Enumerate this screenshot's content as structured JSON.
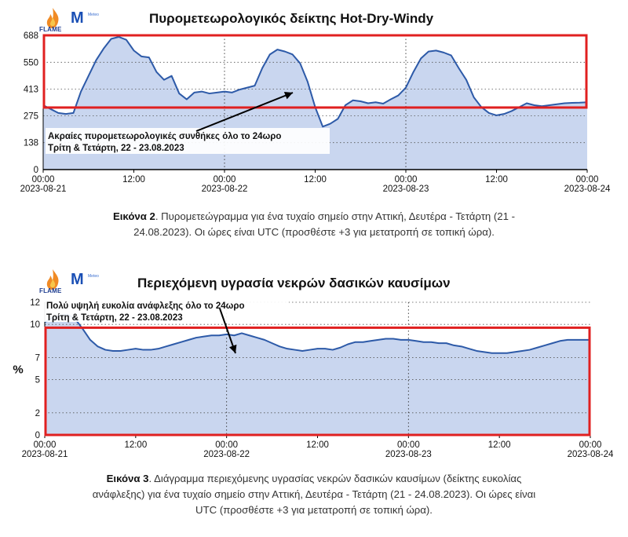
{
  "logos": {
    "flame_text": "FLAME",
    "meteo_mark": "M",
    "meteo_text": "Meteo"
  },
  "charts": [
    {
      "title": "Πυρομετεωρολογικός δείκτης Hot-Dry-Windy",
      "colors": {
        "fill": "#c9d6ef",
        "line": "#2d5aa8",
        "box": "#e02020"
      },
      "annotation": {
        "line1": "Ακραίες πυρομετεωρολογικές συνθήκες όλο το 24ωρο",
        "line2": "Τρίτη & Τετάρτη, 22 - 23.08.2023"
      },
      "caption": {
        "label": "Εικόνα 2",
        "text_line1": ". Πυρομετεώγραμμα για ένα τυχαίο σημείο στην Αττική, Δευτέρα - Τετάρτη (21 -",
        "text_line2": "24.08.2023). Οι ώρες είναι UTC (προσθέστε +3 για μετατροπή σε τοπική ώρα)."
      }
    },
    {
      "title": "Περιεχόμενη υγρασία νεκρών δασικών καυσίμων",
      "colors": {
        "fill": "#c9d6ef",
        "line": "#2d5aa8",
        "box": "#e02020"
      },
      "annotation": {
        "line1": "Πολύ υψηλή ευκολία ανάφλεξης όλο το 24ωρο",
        "line2": "Τρίτη & Τετάρτη, 22 - 23.08.2023"
      },
      "caption": {
        "label": "Εικόνα 3",
        "text_line1": ". Διάγραμμα περιεχόμενης υγρασίας νεκρών δασικών καυσίμων (δείκτης ευκολίας",
        "text_line2": "ανάφλεξης) για ένα τυχαίο σημείο στην Αττική, Δευτέρα - Τετάρτη (21 - 24.08.2023). Οι ώρες είναι",
        "text_line3": "UTC (προσθέστε +3 για μετατροπή σε τοπική ώρα)."
      }
    }
  ],
  "chart_data": [
    {
      "type": "area",
      "title": "Πυρομετεωρολογικός δείκτης Hot-Dry-Windy",
      "ylabel": "",
      "ylim": [
        0,
        688
      ],
      "yticks": [
        0,
        138,
        275,
        413,
        550,
        688
      ],
      "xlim": [
        0,
        72
      ],
      "xticks": [
        {
          "h": 0,
          "time": "00:00",
          "date": "2023-08-21"
        },
        {
          "h": 12,
          "time": "12:00",
          "date": ""
        },
        {
          "h": 24,
          "time": "00:00",
          "date": "2023-08-22"
        },
        {
          "h": 36,
          "time": "12:00",
          "date": ""
        },
        {
          "h": 48,
          "time": "00:00",
          "date": "2023-08-23"
        },
        {
          "h": 60,
          "time": "12:00",
          "date": ""
        },
        {
          "h": 72,
          "time": "00:00",
          "date": "2023-08-24"
        }
      ],
      "vlines": [
        24,
        48
      ],
      "threshold_box": [
        318,
        688
      ],
      "series": [
        {
          "x": [
            0,
            1,
            2,
            3,
            4,
            5,
            6,
            7,
            8,
            9,
            10,
            11,
            12,
            13,
            14,
            15,
            16,
            17,
            18,
            19,
            20,
            21,
            22,
            23,
            24,
            25,
            26,
            27,
            28,
            29,
            30,
            31,
            32,
            33,
            34,
            35,
            36,
            37,
            38,
            39,
            40,
            41,
            42,
            43,
            44,
            45,
            46,
            47,
            48,
            49,
            50,
            51,
            52,
            53,
            54,
            55,
            56,
            57,
            58,
            59,
            60,
            61,
            62,
            63,
            64,
            65,
            66,
            67,
            68,
            69,
            70,
            71,
            72
          ],
          "y": [
            330,
            310,
            290,
            285,
            290,
            400,
            480,
            560,
            620,
            670,
            680,
            665,
            610,
            580,
            575,
            500,
            460,
            480,
            390,
            360,
            395,
            400,
            390,
            395,
            400,
            395,
            410,
            420,
            430,
            520,
            590,
            615,
            605,
            590,
            545,
            450,
            320,
            220,
            235,
            260,
            330,
            355,
            350,
            340,
            345,
            338,
            360,
            380,
            420,
            500,
            570,
            605,
            610,
            600,
            585,
            520,
            460,
            370,
            320,
            290,
            278,
            285,
            300,
            320,
            340,
            330,
            325,
            330,
            335,
            340,
            342,
            343,
            345
          ]
        }
      ]
    },
    {
      "type": "area",
      "title": "Περιεχόμενη υγρασία νεκρών δασικών καυσίμων",
      "ylabel": "%",
      "ylim": [
        0,
        12
      ],
      "yticks": [
        0,
        2,
        5,
        7,
        10,
        12
      ],
      "xlim": [
        0,
        72
      ],
      "xticks": [
        {
          "h": 0,
          "time": "00:00",
          "date": "2023-08-21"
        },
        {
          "h": 12,
          "time": "12:00",
          "date": ""
        },
        {
          "h": 24,
          "time": "00:00",
          "date": "2023-08-22"
        },
        {
          "h": 36,
          "time": "12:00",
          "date": ""
        },
        {
          "h": 48,
          "time": "00:00",
          "date": "2023-08-23"
        },
        {
          "h": 60,
          "time": "12:00",
          "date": ""
        },
        {
          "h": 72,
          "time": "00:00",
          "date": "2023-08-24"
        }
      ],
      "vlines": [
        24,
        48
      ],
      "threshold_box": [
        0,
        9.7
      ],
      "series": [
        {
          "x": [
            0,
            1,
            2,
            3,
            4,
            5,
            6,
            7,
            8,
            9,
            10,
            11,
            12,
            13,
            14,
            15,
            16,
            17,
            18,
            19,
            20,
            21,
            22,
            23,
            24,
            25,
            26,
            27,
            28,
            29,
            30,
            31,
            32,
            33,
            34,
            35,
            36,
            37,
            38,
            39,
            40,
            41,
            42,
            43,
            44,
            45,
            46,
            47,
            48,
            49,
            50,
            51,
            52,
            53,
            54,
            55,
            56,
            57,
            58,
            59,
            60,
            61,
            62,
            63,
            64,
            65,
            66,
            67,
            68,
            69,
            70,
            71,
            72
          ],
          "y": [
            10.2,
            10.6,
            10.8,
            10.9,
            10.5,
            9.6,
            8.6,
            8.0,
            7.7,
            7.6,
            7.6,
            7.7,
            7.8,
            7.7,
            7.7,
            7.8,
            8.0,
            8.2,
            8.4,
            8.6,
            8.8,
            8.9,
            9.0,
            9.0,
            9.1,
            9.0,
            9.2,
            9.0,
            8.8,
            8.6,
            8.3,
            8.0,
            7.8,
            7.7,
            7.6,
            7.7,
            7.8,
            7.8,
            7.7,
            7.9,
            8.2,
            8.4,
            8.4,
            8.5,
            8.6,
            8.7,
            8.7,
            8.6,
            8.6,
            8.5,
            8.4,
            8.4,
            8.3,
            8.3,
            8.1,
            8.0,
            7.8,
            7.6,
            7.5,
            7.4,
            7.4,
            7.4,
            7.5,
            7.6,
            7.7,
            7.9,
            8.1,
            8.3,
            8.5,
            8.6,
            8.6,
            8.6,
            8.6
          ]
        }
      ]
    }
  ]
}
